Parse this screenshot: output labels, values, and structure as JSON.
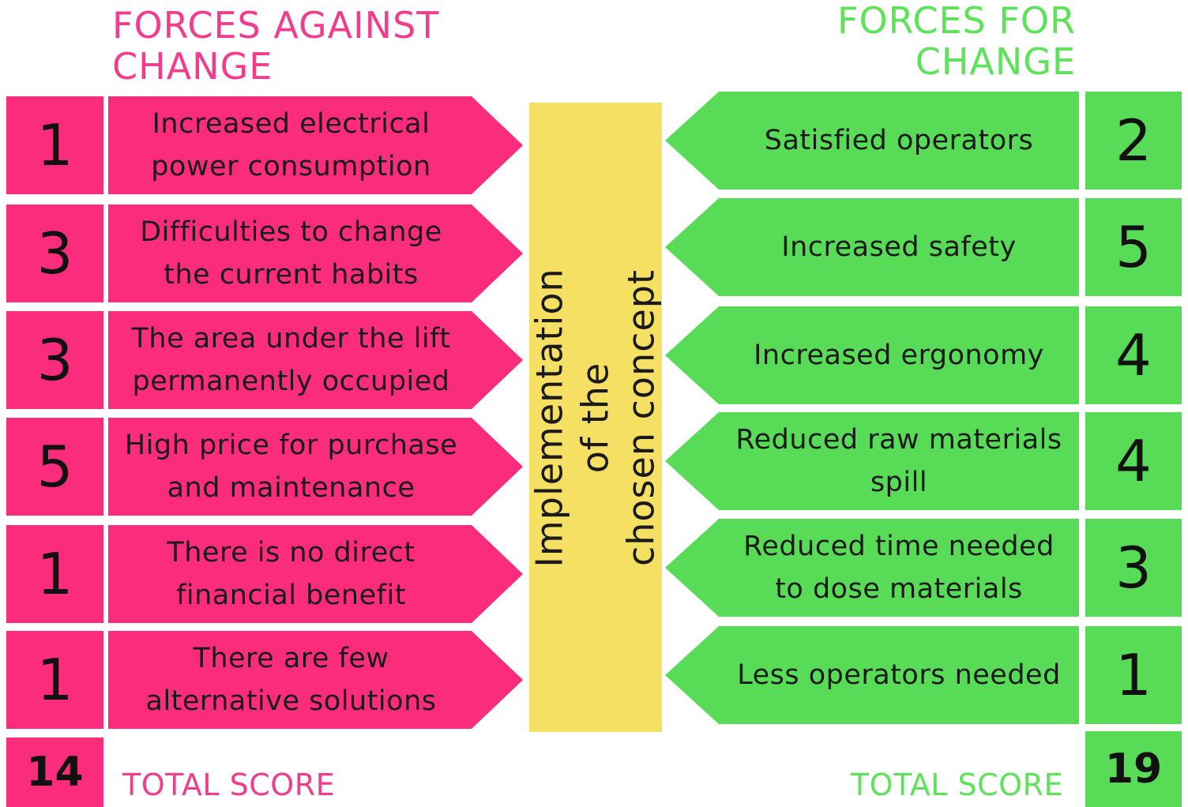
{
  "against": {
    "heading": "FORCES AGAINST\nCHANGE",
    "items": [
      {
        "score": "1",
        "label": "Increased electrical\npower consumption"
      },
      {
        "score": "3",
        "label": "Difficulties to change\nthe current habits"
      },
      {
        "score": "3",
        "label": "The area under the lift\npermanently occupied"
      },
      {
        "score": "5",
        "label": "High price for purchase\nand maintenance"
      },
      {
        "score": "1",
        "label": "There is no direct\nfinancial benefit"
      },
      {
        "score": "1",
        "label": "There are few\nalternative solutions"
      }
    ],
    "total_label": "TOTAL SCORE",
    "total": "14"
  },
  "for": {
    "heading": "FORCES FOR\nCHANGE",
    "items": [
      {
        "score": "2",
        "label": "Satisfied operators"
      },
      {
        "score": "5",
        "label": "Increased safety"
      },
      {
        "score": "4",
        "label": "Increased ergonomy"
      },
      {
        "score": "4",
        "label": "Reduced raw materials\nspill"
      },
      {
        "score": "3",
        "label": "Reduced time needed\nto dose materials"
      },
      {
        "score": "1",
        "label": "Less operators needed"
      }
    ],
    "total_label": "TOTAL SCORE",
    "total": "19"
  },
  "center": {
    "label": "Implementation of the\nchosen concept"
  },
  "colors": {
    "against": "#fb2c7b",
    "for": "#58dc58",
    "center": "#f6e064",
    "against_text": "#f23d8c",
    "for_text": "#5ee25a"
  }
}
